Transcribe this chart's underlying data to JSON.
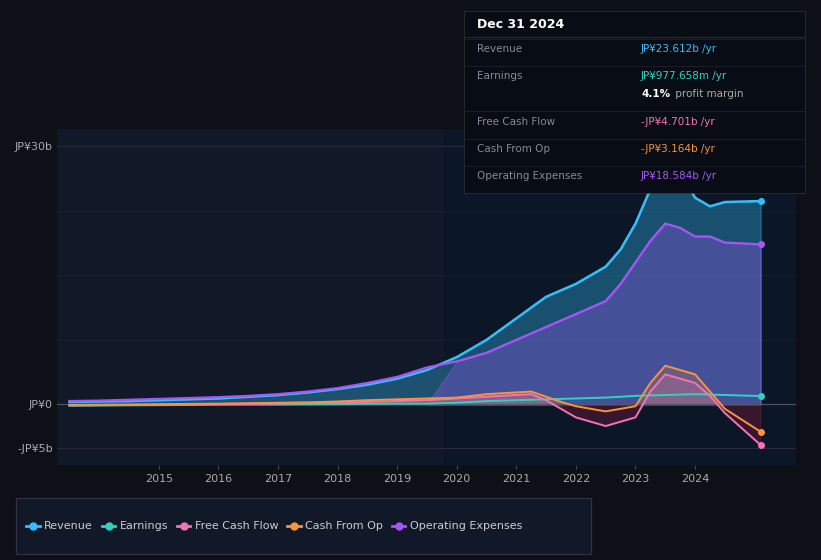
{
  "background_color": "#0d1117",
  "plot_bg_color": "#111827",
  "shade_bg_color": "#0d1a2e",
  "series_colors": {
    "Revenue": "#38bdf8",
    "Earnings": "#2dd4bf",
    "FreeCashFlow": "#f472b6",
    "CashFromOp": "#fb923c",
    "OperatingExpenses": "#a855f7"
  },
  "tooltip": {
    "date": "Dec 31 2024",
    "revenue_label": "Revenue",
    "revenue_val": "JP¥23.612b",
    "earnings_label": "Earnings",
    "earnings_val": "JP¥977.658m",
    "margin_val": "4.1%",
    "margin_text": " profit margin",
    "fcf_label": "Free Cash Flow",
    "fcf_val": "-JP¥4.701b",
    "cop_label": "Cash From Op",
    "cop_val": "-JP¥3.164b",
    "opex_label": "Operating Expenses",
    "opex_val": "JP¥18.584b"
  },
  "legend_items": [
    "Revenue",
    "Earnings",
    "Free Cash Flow",
    "Cash From Op",
    "Operating Expenses"
  ],
  "ylim_min": -7000000000.0,
  "ylim_max": 32000000000.0,
  "xlim_min": 2013.3,
  "xlim_max": 2025.7,
  "xtick_positions": [
    2015,
    2016,
    2017,
    2018,
    2019,
    2020,
    2021,
    2022,
    2023,
    2024
  ],
  "shade_x": 2019.8,
  "revenue_x": [
    2013.5,
    2014.0,
    2014.5,
    2015.0,
    2015.5,
    2016.0,
    2016.5,
    2017.0,
    2017.5,
    2018.0,
    2018.5,
    2019.0,
    2019.5,
    2020.0,
    2020.5,
    2021.0,
    2021.5,
    2022.0,
    2022.5,
    2022.75,
    2023.0,
    2023.25,
    2023.5,
    2023.75,
    2024.0,
    2024.25,
    2024.5,
    2025.1
  ],
  "revenue_y": [
    300000000.0,
    350000000.0,
    400000000.0,
    500000000.0,
    600000000.0,
    700000000.0,
    900000000.0,
    1100000000.0,
    1400000000.0,
    1800000000.0,
    2300000000.0,
    3000000000.0,
    4000000000.0,
    5500000000.0,
    7500000000.0,
    10000000000.0,
    12500000000.0,
    14000000000.0,
    16000000000.0,
    18000000000.0,
    21000000000.0,
    25000000000.0,
    28500000000.0,
    27000000000.0,
    24000000000.0,
    23000000000.0,
    23500000000.0,
    23612000000.0
  ],
  "opex_x": [
    2013.5,
    2014.0,
    2014.5,
    2015.0,
    2015.5,
    2016.0,
    2016.5,
    2017.0,
    2017.5,
    2018.0,
    2018.5,
    2019.0,
    2019.5,
    2020.0,
    2020.5,
    2021.0,
    2021.5,
    2022.0,
    2022.5,
    2022.75,
    2023.0,
    2023.25,
    2023.5,
    2023.75,
    2024.0,
    2024.25,
    2024.5,
    2025.1
  ],
  "opex_y": [
    400000000.0,
    450000000.0,
    550000000.0,
    650000000.0,
    750000000.0,
    850000000.0,
    1000000000.0,
    1200000000.0,
    1500000000.0,
    1900000000.0,
    2500000000.0,
    3200000000.0,
    4300000000.0,
    5000000000.0,
    6000000000.0,
    7500000000.0,
    9000000000.0,
    10500000000.0,
    12000000000.0,
    14000000000.0,
    16500000000.0,
    19000000000.0,
    21000000000.0,
    20500000000.0,
    19500000000.0,
    19500000000.0,
    18800000000.0,
    18584000000.0
  ],
  "earnings_x": [
    2013.5,
    2014.0,
    2014.5,
    2015.0,
    2015.5,
    2016.0,
    2016.5,
    2017.0,
    2017.5,
    2018.0,
    2018.5,
    2019.0,
    2019.5,
    2020.0,
    2020.5,
    2021.0,
    2021.5,
    2022.0,
    2022.5,
    2023.0,
    2023.5,
    2024.0,
    2024.5,
    2025.1
  ],
  "earnings_y": [
    -150000000.0,
    -120000000.0,
    -100000000.0,
    -80000000.0,
    -50000000.0,
    -20000000.0,
    0.0,
    0.0,
    20000000.0,
    50000000.0,
    80000000.0,
    100000000.0,
    100000000.0,
    200000000.0,
    400000000.0,
    500000000.0,
    600000000.0,
    700000000.0,
    800000000.0,
    1000000000.0,
    1100000000.0,
    1200000000.0,
    1100000000.0,
    978000000.0
  ],
  "fcf_x": [
    2013.5,
    2014.0,
    2014.5,
    2015.0,
    2015.5,
    2016.0,
    2016.5,
    2017.0,
    2017.5,
    2018.0,
    2018.5,
    2019.0,
    2019.5,
    2020.0,
    2020.25,
    2020.5,
    2020.75,
    2021.0,
    2021.25,
    2021.5,
    2021.75,
    2022.0,
    2022.25,
    2022.5,
    2022.75,
    2023.0,
    2023.25,
    2023.5,
    2023.75,
    2024.0,
    2024.25,
    2024.5,
    2025.1
  ],
  "fcf_y": [
    -100000000.0,
    -80000000.0,
    -50000000.0,
    -30000000.0,
    0.0,
    50000000.0,
    50000000.0,
    100000000.0,
    150000000.0,
    200000000.0,
    300000000.0,
    400000000.0,
    500000000.0,
    700000000.0,
    800000000.0,
    900000000.0,
    1000000000.0,
    1100000000.0,
    1200000000.0,
    500000000.0,
    -500000000.0,
    -1500000000.0,
    -2000000000.0,
    -2500000000.0,
    -2000000000.0,
    -1500000000.0,
    1500000000.0,
    3500000000.0,
    3000000000.0,
    2500000000.0,
    1000000000.0,
    -1000000000.0,
    -4701000000.0
  ],
  "cop_x": [
    2013.5,
    2014.0,
    2014.5,
    2015.0,
    2015.5,
    2016.0,
    2016.5,
    2017.0,
    2017.5,
    2018.0,
    2018.5,
    2019.0,
    2019.5,
    2020.0,
    2020.25,
    2020.5,
    2020.75,
    2021.0,
    2021.25,
    2021.5,
    2021.75,
    2022.0,
    2022.25,
    2022.5,
    2022.75,
    2023.0,
    2023.25,
    2023.5,
    2023.75,
    2024.0,
    2024.25,
    2024.5,
    2025.1
  ],
  "cop_y": [
    -50000000.0,
    -30000000.0,
    0.0,
    30000000.0,
    70000000.0,
    100000000.0,
    150000000.0,
    200000000.0,
    250000000.0,
    350000000.0,
    500000000.0,
    600000000.0,
    700000000.0,
    800000000.0,
    1000000000.0,
    1200000000.0,
    1300000000.0,
    1400000000.0,
    1500000000.0,
    900000000.0,
    300000000.0,
    -200000000.0,
    -500000000.0,
    -800000000.0,
    -500000000.0,
    -200000000.0,
    2500000000.0,
    4500000000.0,
    4000000000.0,
    3500000000.0,
    1500000000.0,
    -500000000.0,
    -3164000000.0
  ]
}
